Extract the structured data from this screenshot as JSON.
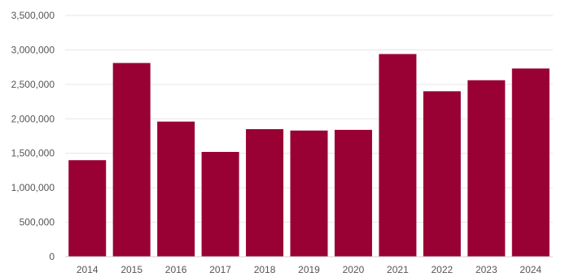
{
  "colors": {
    "bar": "#990033",
    "grid": "#e6e6e6",
    "axis": "#d0d0d0",
    "text": "#555555"
  },
  "chart_data": {
    "type": "bar",
    "title": "",
    "xlabel": "",
    "ylabel": "",
    "grid": true,
    "legend": "none",
    "ylim": [
      0,
      3500000
    ],
    "y_ticks": [
      0,
      500000,
      1000000,
      1500000,
      2000000,
      2500000,
      3000000,
      3500000
    ],
    "y_tick_labels": [
      "0",
      "500,000",
      "1,000,000",
      "1,500,000",
      "2,000,000",
      "2,500,000",
      "3,000,000",
      "3,500,000"
    ],
    "categories": [
      "2014",
      "2015",
      "2016",
      "2017",
      "2018",
      "2019",
      "2020",
      "2021",
      "2022",
      "2023",
      "2024"
    ],
    "values": [
      1400000,
      2810000,
      1960000,
      1520000,
      1850000,
      1830000,
      1840000,
      2940000,
      2400000,
      2560000,
      2730000
    ]
  }
}
